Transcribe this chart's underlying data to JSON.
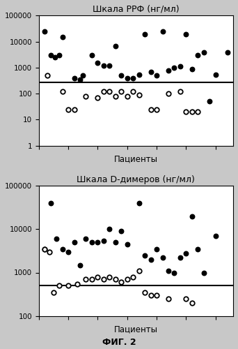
{
  "fig_title": "ФИГ. 2",
  "plot1": {
    "title": "Шкала РРФ (нг/мл)",
    "xlabel": "Пациенты",
    "ylim": [
      1,
      100000
    ],
    "threshold_line": 270,
    "filled_x": [
      1,
      2,
      2.8,
      3.5,
      4,
      6,
      7,
      7.5,
      9,
      10,
      11,
      12,
      13,
      14,
      15,
      16,
      17,
      18,
      19,
      20,
      21,
      22,
      23,
      24,
      25,
      26,
      27,
      28,
      29,
      30,
      32
    ],
    "filled_y": [
      25000,
      3000,
      2500,
      3000,
      15000,
      400,
      350,
      500,
      3000,
      1500,
      1200,
      1200,
      7000,
      500,
      400,
      400,
      550,
      20000,
      700,
      500,
      25000,
      800,
      1000,
      1100,
      20000,
      900,
      3000,
      4000,
      50,
      550,
      4000
    ],
    "open_x": [
      1.5,
      4,
      5,
      6,
      8,
      10,
      11,
      12,
      13,
      14,
      15,
      16,
      17,
      19,
      20,
      22,
      24,
      25,
      26,
      27
    ],
    "open_y": [
      500,
      120,
      25,
      25,
      80,
      70,
      120,
      120,
      80,
      120,
      80,
      120,
      90,
      25,
      25,
      100,
      120,
      20,
      20,
      20
    ]
  },
  "plot2": {
    "title": "Шкала D-димеров (нг/мл)",
    "xlabel": "Пациенты",
    "ylim": [
      100,
      100000
    ],
    "threshold_line": 500,
    "filled_x": [
      1,
      2,
      3,
      4,
      5,
      6,
      7,
      8,
      9,
      10,
      11,
      12,
      13,
      14,
      15,
      17,
      18,
      19,
      20,
      21,
      22,
      23,
      24,
      25,
      26,
      27,
      28,
      30
    ],
    "filled_y": [
      3500,
      40000,
      6000,
      3500,
      3000,
      5000,
      1500,
      6000,
      5000,
      5000,
      5500,
      10000,
      5000,
      9000,
      4500,
      40000,
      2500,
      2000,
      3500,
      2200,
      1100,
      1000,
      2200,
      2800,
      20000,
      3500,
      1000,
      7000
    ],
    "open_x": [
      1,
      1.8,
      2.5,
      3.5,
      5,
      6.5,
      8,
      9,
      10,
      11,
      12,
      13,
      14,
      15,
      16,
      17,
      18,
      19,
      20,
      22,
      25,
      26
    ],
    "open_y": [
      3500,
      3000,
      350,
      500,
      500,
      550,
      700,
      700,
      800,
      700,
      800,
      700,
      600,
      700,
      800,
      1100,
      350,
      300,
      300,
      250,
      250,
      200
    ]
  },
  "fig_bg": "#c8c8c8",
  "plot_bg": "#ffffff",
  "filled_color": "#000000",
  "open_facecolor": "#ffffff",
  "open_edgecolor": "#000000",
  "line_color": "#000000",
  "xmax": 33
}
